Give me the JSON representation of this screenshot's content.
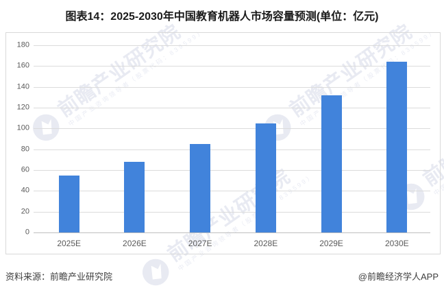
{
  "title": "图表14：2025-2030年中国教育机器人市场容量预测(单位：亿元)",
  "chart_data": {
    "type": "bar",
    "title": "图表14：2025-2030年中国教育机器人市场容量预测(单位：亿元)",
    "categories": [
      "2025E",
      "2026E",
      "2027E",
      "2028E",
      "2029E",
      "2030E"
    ],
    "values": [
      55,
      68,
      85,
      105,
      132,
      164
    ],
    "xlabel": "",
    "ylabel": "",
    "unit": "亿元",
    "ylim": [
      0,
      180
    ],
    "yticks": [
      0,
      20,
      40,
      60,
      80,
      100,
      120,
      140,
      160,
      180
    ],
    "grid": true,
    "legend": false,
    "bar_color": "#4183db"
  },
  "footer": {
    "source": "资料来源：前瞻产业研究院",
    "credit": "@前瞻经济学人APP"
  },
  "watermark": {
    "text": "前瞻产业研究院",
    "subtext": "中国产业咨询领导者（股票代码：839599）"
  },
  "colors": {
    "bar": "#4183db",
    "gridline": "#dbdbdb",
    "axis_line": "#bfbfbf",
    "chart_border": "#d9d9d9",
    "tick_label": "#595959",
    "title_text": "#1a1a1a",
    "footer_text": "#3d3d3d",
    "watermark": "#e8eaf2"
  }
}
